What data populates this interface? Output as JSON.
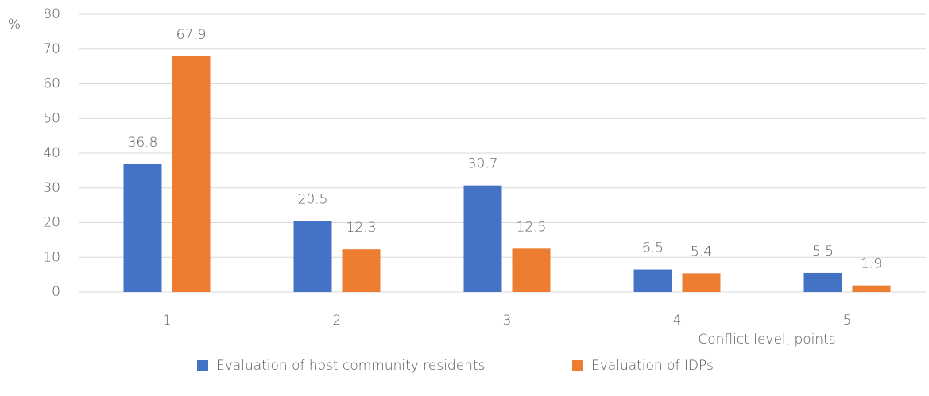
{
  "chart_data": {
    "type": "bar",
    "y_label": "%",
    "x_label": "Conflict level, points",
    "categories": [
      "1",
      "2",
      "3",
      "4",
      "5"
    ],
    "series": [
      {
        "name": "Evaluation of host community residents",
        "color": "#4472c4",
        "values": [
          36.8,
          20.5,
          30.7,
          6.5,
          5.5
        ]
      },
      {
        "name": "Evaluation of IDPs",
        "color": "#ed7d31",
        "values": [
          67.9,
          12.3,
          12.5,
          5.4,
          1.9
        ]
      }
    ],
    "ylim": [
      0,
      80
    ],
    "yticks": [
      0,
      10,
      20,
      30,
      40,
      50,
      60,
      70,
      80
    ],
    "grid": true,
    "legend": "bottom"
  }
}
